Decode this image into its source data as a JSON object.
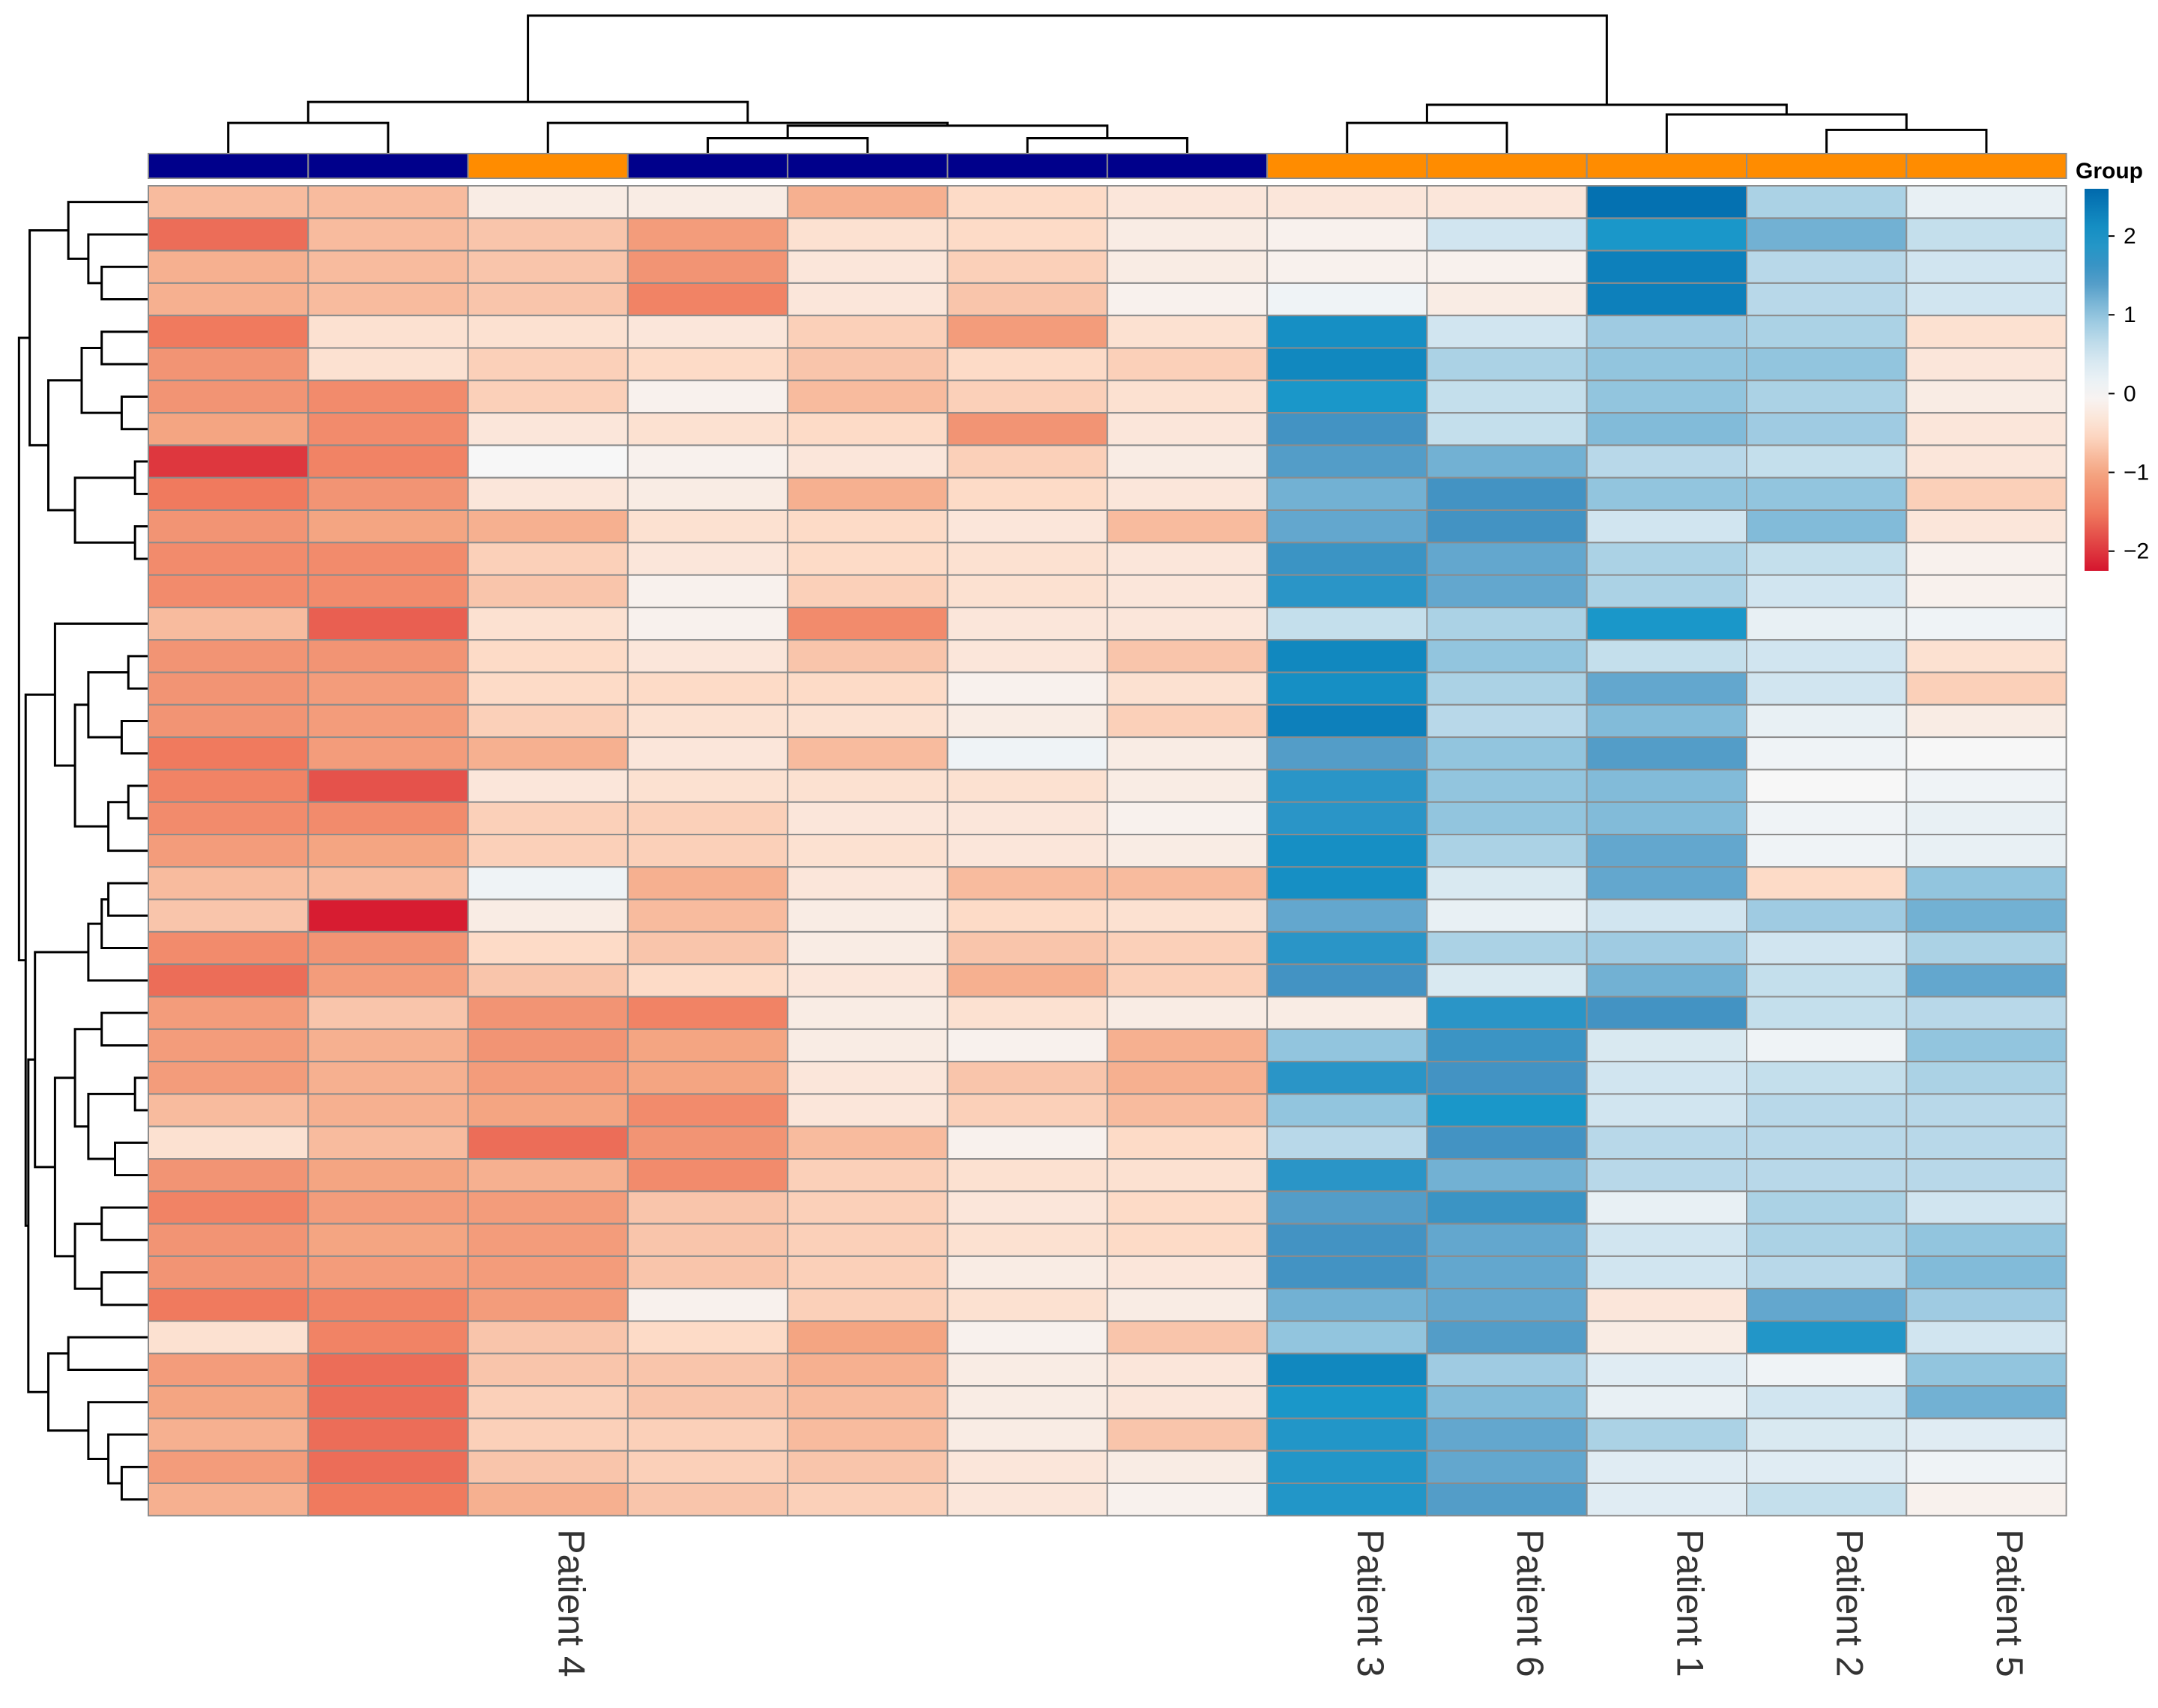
{
  "chart_data": {
    "type": "heatmap",
    "title": "",
    "legend": {
      "title": "Group",
      "scale_ticks": [
        "2",
        "1",
        "0",
        "−1",
        "−2"
      ],
      "scale_values": [
        2,
        1,
        0,
        -1,
        -2
      ],
      "range": [
        -2.25,
        2.6
      ],
      "colors": {
        "high": "#0069ac",
        "mid": "#f7f7f7",
        "low": "#d5152e"
      }
    },
    "columns": [
      "",
      "",
      "Patient 4",
      "",
      "",
      "",
      "",
      "Patient 3",
      "Patient 6",
      "Patient 1",
      "Patient 2",
      "Patient 5"
    ],
    "column_group_colors": [
      "#00008b",
      "#00008b",
      "#ff8c00",
      "#00008b",
      "#00008b",
      "#00008b",
      "#00008b",
      "#ff8c00",
      "#ff8c00",
      "#ff8c00",
      "#ff8c00",
      "#ff8c00"
    ],
    "values": [
      [
        -0.8,
        -0.8,
        -0.2,
        -0.2,
        -0.9,
        -0.5,
        -0.3,
        -0.3,
        -0.3,
        2.5,
        0.8,
        0.2
      ],
      [
        -1.6,
        -0.8,
        -0.7,
        -1.1,
        -0.4,
        -0.5,
        -0.2,
        -0.1,
        0.5,
        2.0,
        1.2,
        0.6
      ],
      [
        -0.9,
        -0.8,
        -0.7,
        -1.2,
        -0.3,
        -0.6,
        -0.2,
        -0.1,
        -0.1,
        2.3,
        0.7,
        0.5
      ],
      [
        -0.9,
        -0.8,
        -0.7,
        -1.4,
        -0.3,
        -0.7,
        -0.1,
        0.1,
        -0.2,
        2.3,
        0.7,
        0.5
      ],
      [
        -1.5,
        -0.4,
        -0.4,
        -0.3,
        -0.6,
        -1.1,
        -0.4,
        2.1,
        0.5,
        0.9,
        0.8,
        -0.4
      ],
      [
        -1.2,
        -0.4,
        -0.6,
        -0.5,
        -0.7,
        -0.5,
        -0.6,
        2.2,
        0.8,
        1.0,
        1.0,
        -0.3
      ],
      [
        -1.2,
        -1.3,
        -0.6,
        -0.1,
        -0.8,
        -0.6,
        -0.4,
        2.0,
        0.6,
        1.0,
        0.8,
        -0.2
      ],
      [
        -1.0,
        -1.3,
        -0.3,
        -0.4,
        -0.5,
        -1.2,
        -0.3,
        1.5,
        0.6,
        1.1,
        0.9,
        -0.3
      ],
      [
        -2.0,
        -1.4,
        0.0,
        -0.1,
        -0.3,
        -0.6,
        -0.2,
        1.4,
        1.2,
        0.7,
        0.6,
        -0.3
      ],
      [
        -1.5,
        -1.2,
        -0.3,
        -0.2,
        -0.9,
        -0.5,
        -0.3,
        1.2,
        1.5,
        1.0,
        1.0,
        -0.6
      ],
      [
        -1.2,
        -1.0,
        -0.9,
        -0.4,
        -0.5,
        -0.3,
        -0.8,
        1.3,
        1.5,
        0.5,
        1.1,
        -0.3
      ],
      [
        -1.3,
        -1.3,
        -0.6,
        -0.3,
        -0.5,
        -0.4,
        -0.3,
        1.6,
        1.3,
        0.8,
        0.6,
        -0.1
      ],
      [
        -1.3,
        -1.3,
        -0.7,
        -0.1,
        -0.6,
        -0.4,
        -0.3,
        1.8,
        1.3,
        0.8,
        0.5,
        -0.1
      ],
      [
        -0.8,
        -1.7,
        -0.4,
        -0.1,
        -1.3,
        -0.3,
        -0.3,
        0.6,
        0.8,
        2.0,
        0.2,
        0.1
      ],
      [
        -1.2,
        -1.2,
        -0.5,
        -0.3,
        -0.7,
        -0.3,
        -0.7,
        2.2,
        1.0,
        0.6,
        0.5,
        -0.4
      ],
      [
        -1.2,
        -1.1,
        -0.5,
        -0.5,
        -0.5,
        -0.1,
        -0.4,
        2.1,
        0.8,
        1.3,
        0.5,
        -0.6
      ],
      [
        -1.2,
        -1.1,
        -0.6,
        -0.4,
        -0.4,
        -0.2,
        -0.6,
        2.3,
        0.7,
        1.1,
        0.2,
        -0.2
      ],
      [
        -1.5,
        -1.1,
        -0.9,
        -0.3,
        -0.8,
        0.1,
        -0.2,
        1.4,
        1.0,
        1.4,
        0.1,
        0.0
      ],
      [
        -1.4,
        -1.8,
        -0.3,
        -0.4,
        -0.4,
        -0.4,
        -0.2,
        1.8,
        1.0,
        1.1,
        0.0,
        0.1
      ],
      [
        -1.3,
        -1.3,
        -0.6,
        -0.6,
        -0.3,
        -0.3,
        -0.1,
        1.8,
        1.0,
        1.1,
        0.1,
        0.2
      ],
      [
        -1.1,
        -1.0,
        -0.6,
        -0.6,
        -0.4,
        -0.3,
        -0.2,
        2.1,
        0.8,
        1.3,
        0.1,
        0.2
      ],
      [
        -0.8,
        -0.8,
        0.1,
        -0.9,
        -0.3,
        -0.8,
        -0.8,
        2.1,
        0.4,
        1.3,
        -0.5,
        1.0
      ],
      [
        -0.7,
        -2.2,
        -0.2,
        -0.8,
        -0.2,
        -0.5,
        -0.4,
        1.3,
        0.2,
        0.5,
        0.9,
        1.2
      ],
      [
        -1.3,
        -1.2,
        -0.5,
        -0.7,
        -0.2,
        -0.7,
        -0.6,
        1.8,
        0.8,
        0.9,
        0.5,
        0.8
      ],
      [
        -1.6,
        -1.1,
        -0.7,
        -0.5,
        -0.3,
        -0.9,
        -0.6,
        1.5,
        0.4,
        1.2,
        0.6,
        1.3
      ],
      [
        -1.1,
        -0.7,
        -1.2,
        -1.4,
        -0.2,
        -0.4,
        -0.2,
        -0.2,
        1.8,
        1.5,
        0.6,
        0.7
      ],
      [
        -1.1,
        -0.9,
        -1.2,
        -1.0,
        -0.2,
        -0.1,
        -0.9,
        1.0,
        1.6,
        0.4,
        0.1,
        1.0
      ],
      [
        -1.1,
        -0.9,
        -1.1,
        -1.0,
        -0.3,
        -0.7,
        -0.9,
        1.8,
        1.5,
        0.5,
        0.6,
        0.8
      ],
      [
        -0.8,
        -0.9,
        -1.0,
        -1.3,
        -0.3,
        -0.6,
        -0.8,
        1.0,
        2.0,
        0.5,
        0.7,
        0.7
      ],
      [
        -0.4,
        -0.8,
        -1.6,
        -1.2,
        -0.8,
        -0.1,
        -0.5,
        0.7,
        1.5,
        0.7,
        0.7,
        0.7
      ],
      [
        -1.2,
        -1.0,
        -0.9,
        -1.3,
        -0.6,
        -0.4,
        -0.4,
        1.8,
        1.2,
        0.7,
        0.7,
        0.7
      ],
      [
        -1.4,
        -1.1,
        -1.1,
        -0.7,
        -0.6,
        -0.3,
        -0.5,
        1.4,
        1.6,
        0.2,
        0.8,
        0.5
      ],
      [
        -1.2,
        -1.0,
        -1.1,
        -0.7,
        -0.6,
        -0.4,
        -0.5,
        1.5,
        1.3,
        0.5,
        0.8,
        1.0
      ],
      [
        -1.2,
        -1.1,
        -1.1,
        -0.7,
        -0.6,
        -0.2,
        -0.3,
        1.5,
        1.3,
        0.5,
        0.7,
        1.1
      ],
      [
        -1.5,
        -1.4,
        -1.1,
        -0.1,
        -0.6,
        -0.4,
        -0.2,
        1.2,
        1.3,
        -0.3,
        1.3,
        0.9
      ],
      [
        -0.4,
        -1.4,
        -0.7,
        -0.5,
        -1.0,
        -0.1,
        -0.7,
        1.0,
        1.4,
        -0.2,
        1.9,
        0.5
      ],
      [
        -1.1,
        -1.6,
        -0.7,
        -0.7,
        -0.9,
        -0.2,
        -0.3,
        2.2,
        0.9,
        0.3,
        0.1,
        1.0
      ],
      [
        -1.0,
        -1.6,
        -0.6,
        -0.7,
        -0.8,
        -0.2,
        -0.3,
        2.0,
        1.1,
        0.2,
        0.5,
        1.2
      ],
      [
        -0.9,
        -1.6,
        -0.6,
        -0.6,
        -0.8,
        -0.2,
        -0.7,
        1.9,
        1.3,
        0.8,
        0.4,
        0.3
      ],
      [
        -1.1,
        -1.6,
        -0.7,
        -0.6,
        -0.7,
        -0.3,
        -0.2,
        1.9,
        1.3,
        0.3,
        0.3,
        0.1
      ],
      [
        -0.9,
        -1.5,
        -0.9,
        -0.7,
        -0.6,
        -0.3,
        -0.1,
        1.9,
        1.4,
        0.3,
        0.6,
        -0.1
      ]
    ],
    "col_dendrogram": {
      "merges": [
        [
          0,
          1,
          0.22
        ],
        [
          3,
          4,
          0.11
        ],
        [
          5,
          6,
          0.11
        ],
        [
          -2,
          -3,
          0.2
        ],
        [
          2,
          -4,
          0.22
        ],
        [
          -1,
          -5,
          0.37
        ],
        [
          7,
          8,
          0.22
        ],
        [
          10,
          11,
          0.17
        ],
        [
          9,
          -8,
          0.28
        ],
        [
          -7,
          -9,
          0.35
        ],
        [
          -6,
          -10,
          0.99
        ]
      ]
    },
    "row_dendrogram": {
      "merges": [
        [
          2,
          3,
          0.35
        ],
        [
          1,
          -1,
          0.45
        ],
        [
          0,
          -2,
          0.6
        ],
        [
          4,
          5,
          0.35
        ],
        [
          6,
          7,
          0.2
        ],
        [
          -4,
          -5,
          0.5
        ],
        [
          8,
          9,
          0.1
        ],
        [
          10,
          11,
          0.1
        ],
        [
          -7,
          -8,
          0.55
        ],
        [
          -6,
          -9,
          0.75
        ],
        [
          -3,
          -10,
          0.89
        ],
        [
          14,
          15,
          0.15
        ],
        [
          16,
          17,
          0.2
        ],
        [
          -12,
          -13,
          0.45
        ],
        [
          18,
          19,
          0.15
        ],
        [
          20,
          -15,
          0.3
        ],
        [
          -14,
          -16,
          0.55
        ],
        [
          13,
          -17,
          0.7
        ],
        [
          21,
          22,
          0.3
        ],
        [
          23,
          -19,
          0.35
        ],
        [
          24,
          -20,
          0.45
        ],
        [
          25,
          26,
          0.35
        ],
        [
          27,
          28,
          0.1
        ],
        [
          29,
          30,
          0.25
        ],
        [
          -23,
          -24,
          0.45
        ],
        [
          -22,
          -25,
          0.55
        ],
        [
          31,
          32,
          0.35
        ],
        [
          33,
          34,
          0.35
        ],
        [
          -27,
          -28,
          0.55
        ],
        [
          -26,
          -29,
          0.7
        ],
        [
          -21,
          -30,
          0.85
        ],
        [
          35,
          36,
          0.6
        ],
        [
          39,
          40,
          0.2
        ],
        [
          38,
          -33,
          0.3
        ],
        [
          37,
          -34,
          0.45
        ],
        [
          -35,
          -32,
          0.75
        ],
        [
          -31,
          -36,
          0.9
        ],
        [
          -18,
          -37,
          0.92
        ],
        [
          -11,
          -38,
          0.97
        ]
      ]
    }
  }
}
